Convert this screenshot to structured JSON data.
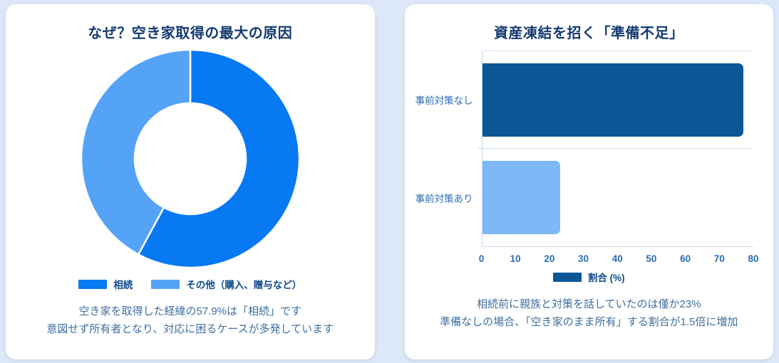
{
  "page": {
    "background_color": "#dce8f8",
    "card_background_color": "#ffffff",
    "title_color": "#143a70",
    "caption_color": "#3e6f9e"
  },
  "donut_card": {
    "title": "なぜ？空き家取得の最大の原因",
    "caption_line1": "空き家を取得した経緯の57.9%は「相続」です",
    "caption_line2": "意図せず所有者となり、対応に困るケースが多発しています"
  },
  "bar_card": {
    "title": "資産凍結を招く「準備不足」",
    "caption_line1": "相続前に親族と対策を話していたのは僅か23%",
    "caption_line2": "準備なしの場合、「空き家のまま所有」する割合が1.5倍に増加"
  },
  "chart_data": [
    {
      "type": "pie",
      "subtype": "donut",
      "title": "なぜ？空き家取得の最大の原因",
      "labels": [
        "相続",
        "その他（購入、贈与など）"
      ],
      "values": [
        57.9,
        42.1
      ],
      "colors": [
        "#0779f2",
        "#54a3f7"
      ],
      "start_angle_deg": 0,
      "direction": "clockwise",
      "inner_radius_ratio": 0.5,
      "legend_position": "bottom"
    },
    {
      "type": "bar",
      "orientation": "horizontal",
      "title": "資産凍結を招く「準備不足」",
      "categories": [
        "事前対策なし",
        "事前対策あり"
      ],
      "values": [
        77,
        23
      ],
      "bar_colors": [
        "#0b5796",
        "#7db9f7"
      ],
      "series_name": "割合 (%)",
      "legend_swatch_color": "#0b5796",
      "xlabel": "",
      "ylabel": "",
      "xlim": [
        0,
        80
      ],
      "xticks": [
        0,
        10,
        20,
        30,
        40,
        50,
        60,
        70,
        80
      ],
      "grid": "row-separators",
      "legend_position": "bottom"
    }
  ]
}
